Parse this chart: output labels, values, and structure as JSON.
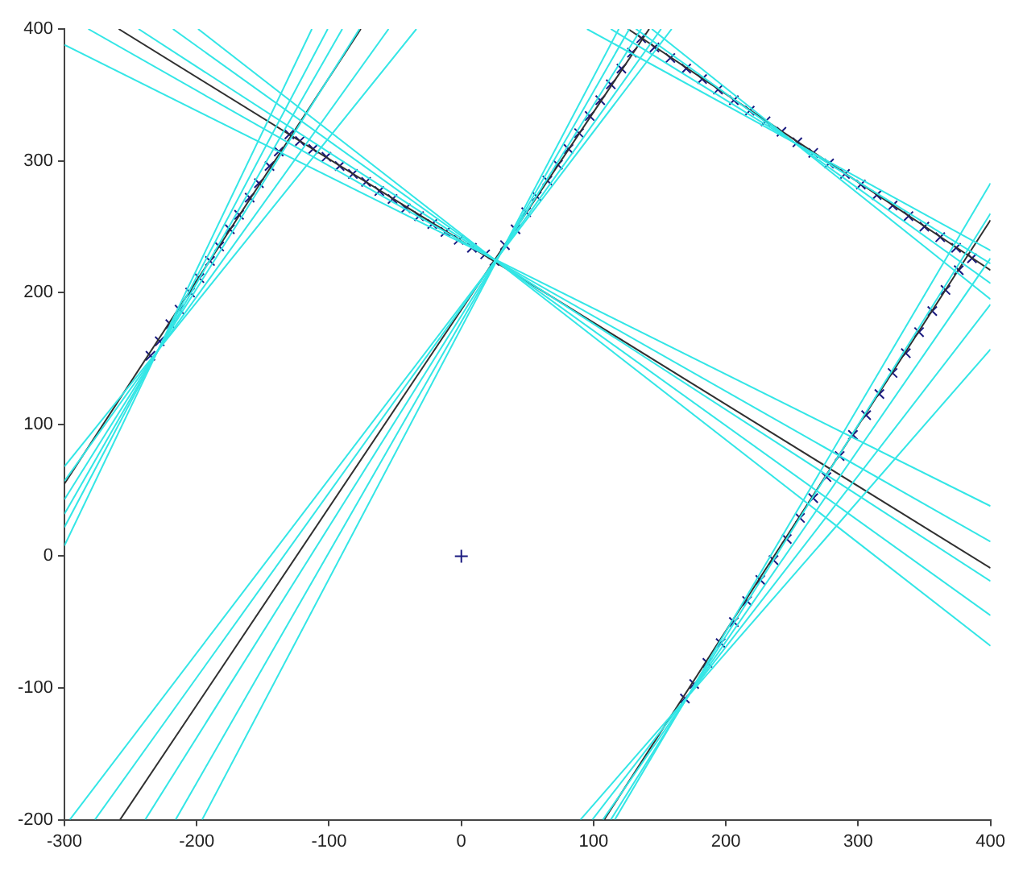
{
  "chart_data": {
    "type": "line",
    "xlim": [
      -300,
      400
    ],
    "ylim": [
      -200,
      400
    ],
    "xticks": [
      -300,
      -200,
      -100,
      0,
      100,
      200,
      300,
      400
    ],
    "yticks": [
      -200,
      -100,
      0,
      100,
      200,
      300,
      400
    ],
    "grid": false,
    "legend": false,
    "line_style": "solid",
    "series": [
      {
        "color": "#33e6e6",
        "x": [
          -300,
          -34
        ],
        "values": [
          68,
          400
        ]
      },
      {
        "color": "#33e6e6",
        "x": [
          -300,
          -55
        ],
        "values": [
          57,
          400
        ]
      },
      {
        "color": "#33e6e6",
        "x": [
          -300,
          -77
        ],
        "values": [
          43,
          400
        ]
      },
      {
        "color": "#33e6e6",
        "x": [
          -300,
          -90
        ],
        "values": [
          32,
          400
        ]
      },
      {
        "color": "#33e6e6",
        "x": [
          -300,
          -101
        ],
        "values": [
          22,
          400
        ]
      },
      {
        "color": "#33e6e6",
        "x": [
          -300,
          -113
        ],
        "values": [
          8,
          400
        ]
      },
      {
        "color": "#33e6e6",
        "x": [
          -296,
          159
        ],
        "values": [
          -200,
          400
        ]
      },
      {
        "color": "#33e6e6",
        "x": [
          -277,
          151
        ],
        "values": [
          -200,
          400
        ]
      },
      {
        "color": "#33e6e6",
        "x": [
          -239,
          136
        ],
        "values": [
          -200,
          400
        ]
      },
      {
        "color": "#33e6e6",
        "x": [
          -216,
          127
        ],
        "values": [
          -200,
          400
        ]
      },
      {
        "color": "#33e6e6",
        "x": [
          -196,
          119
        ],
        "values": [
          -200,
          400
        ]
      },
      {
        "color": "#33e6e6",
        "x": [
          90,
          400
        ],
        "values": [
          -200,
          157
        ]
      },
      {
        "color": "#33e6e6",
        "x": [
          99,
          400
        ],
        "values": [
          -200,
          191
        ]
      },
      {
        "color": "#33e6e6",
        "x": [
          107,
          400
        ],
        "values": [
          -200,
          226
        ]
      },
      {
        "color": "#33e6e6",
        "x": [
          113,
          400
        ],
        "values": [
          -200,
          260
        ]
      },
      {
        "color": "#33e6e6",
        "x": [
          116,
          400
        ],
        "values": [
          -200,
          283
        ]
      },
      {
        "color": "#33e6e6",
        "x": [
          -300,
          400
        ],
        "values": [
          388,
          38
        ]
      },
      {
        "color": "#33e6e6",
        "x": [
          -282,
          400
        ],
        "values": [
          400,
          11
        ]
      },
      {
        "color": "#33e6e6",
        "x": [
          -244,
          400
        ],
        "values": [
          400,
          -19
        ]
      },
      {
        "color": "#33e6e6",
        "x": [
          -218,
          400
        ],
        "values": [
          400,
          -45
        ]
      },
      {
        "color": "#33e6e6",
        "x": [
          -199,
          400
        ],
        "values": [
          400,
          -68
        ]
      },
      {
        "color": "#33e6e6",
        "x": [
          95,
          400
        ],
        "values": [
          400,
          232
        ]
      },
      {
        "color": "#33e6e6",
        "x": [
          113,
          400
        ],
        "values": [
          400,
          222
        ]
      },
      {
        "color": "#33e6e6",
        "x": [
          132,
          400
        ],
        "values": [
          400,
          207
        ]
      },
      {
        "color": "#33e6e6",
        "x": [
          144,
          400
        ],
        "values": [
          400,
          195
        ]
      },
      {
        "color": "#303030",
        "x": [
          -300,
          -76
        ],
        "values": [
          55,
          400
        ]
      },
      {
        "color": "#303030",
        "x": [
          -258,
          142
        ],
        "values": [
          -200,
          400
        ]
      },
      {
        "color": "#303030",
        "x": [
          108,
          400
        ],
        "values": [
          -200,
          255
        ]
      },
      {
        "color": "#303030",
        "x": [
          -259,
          400
        ],
        "values": [
          400,
          -9
        ]
      },
      {
        "color": "#303030",
        "x": [
          126,
          400
        ],
        "values": [
          400,
          217
        ]
      },
      {
        "type": "scatter",
        "marker": "cross",
        "color": "#1a1a80",
        "x": [
          -235,
          -228,
          -220,
          -213,
          -205,
          -198,
          -190,
          -183,
          -175,
          -168,
          -160,
          -153,
          -145,
          -138,
          -130,
          -122,
          -112,
          -102,
          -92,
          -82,
          -72,
          -62,
          -52,
          -42,
          -32,
          -22,
          -12,
          -2,
          8,
          18,
          25,
          33,
          41,
          49,
          57,
          65,
          73,
          81,
          89,
          97,
          105,
          113,
          121,
          129,
          136,
          146,
          158,
          170,
          182,
          194,
          206,
          218,
          230,
          242,
          254,
          266,
          278,
          290,
          302,
          314,
          326,
          338,
          350,
          362,
          374,
          386,
          376,
          366,
          356,
          346,
          336,
          326,
          316,
          306,
          296,
          286,
          276,
          266,
          256,
          246,
          236,
          226,
          216,
          206,
          196,
          186,
          176,
          169
        ],
        "values": [
          152,
          163,
          176,
          187,
          200,
          211,
          224,
          235,
          248,
          259,
          272,
          283,
          296,
          307,
          320,
          315,
          309,
          303,
          296,
          290,
          284,
          277,
          271,
          264,
          258,
          252,
          246,
          240,
          234,
          229,
          224,
          236,
          248,
          261,
          273,
          285,
          297,
          309,
          321,
          334,
          346,
          358,
          370,
          382,
          393,
          386,
          378,
          370,
          362,
          354,
          346,
          338,
          330,
          322,
          314,
          306,
          298,
          290,
          282,
          274,
          266,
          258,
          250,
          242,
          234,
          226,
          217,
          202,
          186,
          170,
          154,
          139,
          123,
          107,
          92,
          76,
          60,
          44,
          29,
          13,
          -3,
          -18,
          -34,
          -50,
          -66,
          -81,
          -97,
          -108
        ]
      },
      {
        "type": "scatter",
        "marker": "plus",
        "color": "#1a1a80",
        "x": [
          0
        ],
        "values": [
          0
        ]
      }
    ]
  }
}
